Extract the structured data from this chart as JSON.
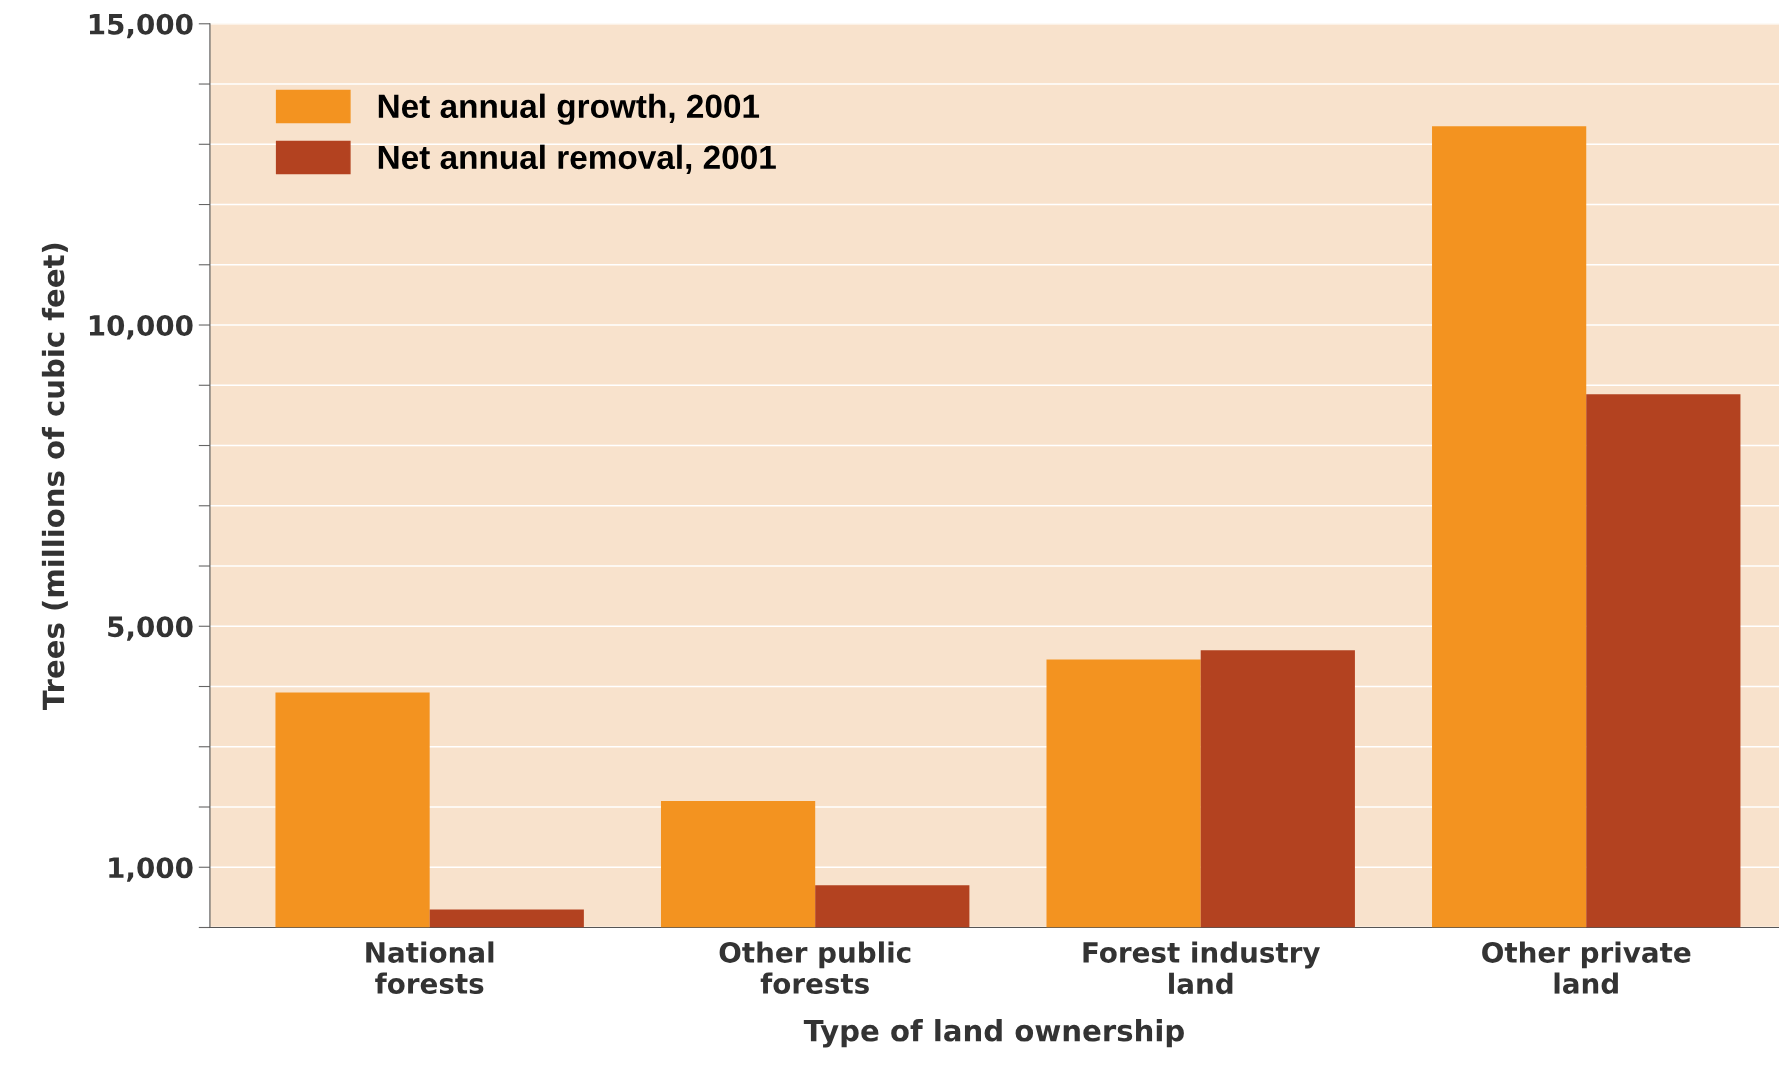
{
  "chart_data": {
    "type": "bar",
    "xlabel": "Type of land ownership",
    "ylabel": "Trees (millions of cubic feet)",
    "categories": [
      "National\nforests",
      "Other public\nforests",
      "Forest industry\nland",
      "Other private\nland"
    ],
    "series": [
      {
        "name": "Net annual growth, 2001",
        "color": "#f39320",
        "values": [
          3900,
          2100,
          4450,
          13300
        ]
      },
      {
        "name": "Net annual removal, 2001",
        "color": "#b34220",
        "values": [
          300,
          700,
          4600,
          8850
        ]
      }
    ],
    "ylim": [
      0,
      15000
    ],
    "yticks": [
      {
        "value": 0,
        "label": null
      },
      {
        "value": 1000,
        "label": "1,000"
      },
      {
        "value": 2000,
        "label": null
      },
      {
        "value": 3000,
        "label": null
      },
      {
        "value": 4000,
        "label": null
      },
      {
        "value": 5000,
        "label": "5,000"
      },
      {
        "value": 6000,
        "label": null
      },
      {
        "value": 7000,
        "label": null
      },
      {
        "value": 8000,
        "label": null
      },
      {
        "value": 9000,
        "label": null
      },
      {
        "value": 10000,
        "label": "10,000"
      },
      {
        "value": 11000,
        "label": null
      },
      {
        "value": 12000,
        "label": null
      },
      {
        "value": 13000,
        "label": null
      },
      {
        "value": 14000,
        "label": null
      },
      {
        "value": 15000,
        "label": "15,000"
      }
    ],
    "grid": "y",
    "legend": "top left"
  }
}
